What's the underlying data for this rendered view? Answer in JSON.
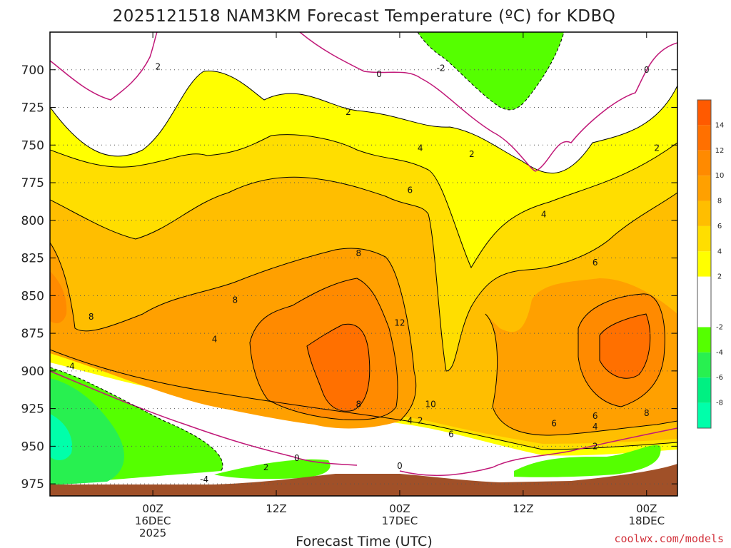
{
  "chart_data": {
    "type": "contour",
    "title": "2025121518 NAM3KM Forecast Temperature (ºC) for KDBQ",
    "xlabel": "Forecast Time (UTC)",
    "ylabel": "",
    "credit": "coolwx.com/models",
    "y_axis": {
      "ticks": [
        "700",
        "725",
        "750",
        "775",
        "800",
        "825",
        "850",
        "875",
        "900",
        "925",
        "950",
        "975"
      ],
      "range": [
        675,
        983
      ]
    },
    "x_axis": {
      "range_hours": [
        -10,
        51
      ],
      "ticks": [
        {
          "hour": 0,
          "line1": "00Z",
          "line2": "16DEC",
          "line3": "2025"
        },
        {
          "hour": 12,
          "line1": "12Z",
          "line2": "",
          "line3": ""
        },
        {
          "hour": 24,
          "line1": "00Z",
          "line2": "17DEC",
          "line3": ""
        },
        {
          "hour": 36,
          "line1": "12Z",
          "line2": "",
          "line3": ""
        },
        {
          "hour": 48,
          "line1": "00Z",
          "line2": "18DEC",
          "line3": ""
        }
      ]
    },
    "colorbar": {
      "labels": [
        "14",
        "12",
        "10",
        "8",
        "6",
        "4",
        "2",
        "-2",
        "-4",
        "-6",
        "-8"
      ],
      "bands": [
        {
          "range": [
            14,
            16
          ],
          "color": "#ff5a00"
        },
        {
          "range": [
            12,
            14
          ],
          "color": "#ff7000"
        },
        {
          "range": [
            10,
            12
          ],
          "color": "#ff8a00"
        },
        {
          "range": [
            8,
            10
          ],
          "color": "#ffa000"
        },
        {
          "range": [
            6,
            8
          ],
          "color": "#ffbe00"
        },
        {
          "range": [
            4,
            6
          ],
          "color": "#ffde00"
        },
        {
          "range": [
            2,
            4
          ],
          "color": "#ffff00"
        },
        {
          "range": [
            -2,
            2
          ],
          "color": "#ffffff"
        },
        {
          "range": [
            -4,
            -2
          ],
          "color": "#55ff00"
        },
        {
          "range": [
            -6,
            -4
          ],
          "color": "#28f050"
        },
        {
          "range": [
            -8,
            -6
          ],
          "color": "#00f082"
        },
        {
          "range": [
            -10,
            -8
          ],
          "color": "#00ffaa"
        }
      ]
    },
    "contour_labels": [
      {
        "text": "2",
        "hour": 0.5,
        "p": 698
      },
      {
        "text": "0",
        "hour": 22,
        "p": 703
      },
      {
        "text": "-2",
        "hour": 28,
        "p": 699
      },
      {
        "text": "0",
        "hour": 48,
        "p": 700
      },
      {
        "text": "2",
        "hour": 19,
        "p": 728
      },
      {
        "text": "4",
        "hour": 26,
        "p": 752
      },
      {
        "text": "2",
        "hour": 31,
        "p": 756
      },
      {
        "text": "2",
        "hour": 49,
        "p": 752
      },
      {
        "text": "6",
        "hour": 25,
        "p": 780
      },
      {
        "text": "4",
        "hour": 38,
        "p": 796
      },
      {
        "text": "8",
        "hour": 20,
        "p": 822
      },
      {
        "text": "6",
        "hour": 43,
        "p": 828
      },
      {
        "text": "8",
        "hour": 8,
        "p": 853
      },
      {
        "text": "8",
        "hour": -6,
        "p": 864
      },
      {
        "text": "12",
        "hour": 24,
        "p": 868
      },
      {
        "text": "4",
        "hour": 6,
        "p": 879
      },
      {
        "text": "-4",
        "hour": -8,
        "p": 897
      },
      {
        "text": "8",
        "hour": 20,
        "p": 922
      },
      {
        "text": "10",
        "hour": 27,
        "p": 922
      },
      {
        "text": "4",
        "hour": 25,
        "p": 933
      },
      {
        "text": "2",
        "hour": 26,
        "p": 933
      },
      {
        "text": "6",
        "hour": 29,
        "p": 942
      },
      {
        "text": "6",
        "hour": 39,
        "p": 935
      },
      {
        "text": "6",
        "hour": 43,
        "p": 930
      },
      {
        "text": "4",
        "hour": 43,
        "p": 937
      },
      {
        "text": "8",
        "hour": 48,
        "p": 928
      },
      {
        "text": "2",
        "hour": 43,
        "p": 950
      },
      {
        "text": "0",
        "hour": 14,
        "p": 958
      },
      {
        "text": "2",
        "hour": 11,
        "p": 964
      },
      {
        "text": "0",
        "hour": 24,
        "p": 963
      },
      {
        "text": "-4",
        "hour": 5,
        "p": 972
      }
    ]
  }
}
